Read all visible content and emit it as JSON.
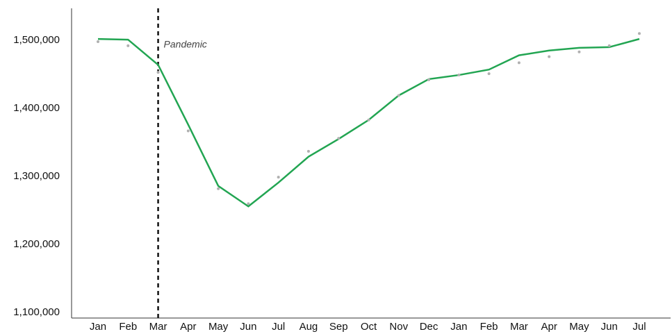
{
  "chart_data": {
    "type": "line",
    "categories": [
      "Jan",
      "Feb",
      "Mar",
      "Apr",
      "May",
      "Jun",
      "Jul",
      "Aug",
      "Sep",
      "Oct",
      "Nov",
      "Dec",
      "Jan",
      "Feb",
      "Mar",
      "Apr",
      "May",
      "Jun",
      "Jul"
    ],
    "series": [
      {
        "color": "#22a552",
        "values": [
          1502000,
          1501000,
          1464000,
          1376000,
          1286000,
          1256000,
          1291000,
          1329000,
          1355000,
          1383000,
          1419000,
          1443000,
          1449000,
          1457000,
          1478000,
          1485000,
          1489000,
          1490000,
          1502000
        ]
      },
      {
        "type": "scatter",
        "color": "#b0b0b0",
        "values": [
          1498000,
          1492000,
          1453000,
          1367000,
          1282000,
          1260000,
          1299000,
          1337000,
          1356000,
          1383000,
          1419000,
          1442000,
          1449000,
          1451000,
          1467000,
          1476000,
          1483000,
          1492000,
          1510000
        ]
      }
    ],
    "ylim": [
      1092000,
      1547000
    ],
    "yticks": [
      {
        "value": 1100000,
        "label": "1,100,000"
      },
      {
        "value": 1200000,
        "label": "1,200,000"
      },
      {
        "value": 1300000,
        "label": "1,300,000"
      },
      {
        "value": 1400000,
        "label": "1,400,000"
      },
      {
        "value": 1500000,
        "label": "1,500,000"
      }
    ],
    "annotations": [
      {
        "text": "Pandemic",
        "x": "Mar"
      }
    ],
    "grid": false
  }
}
